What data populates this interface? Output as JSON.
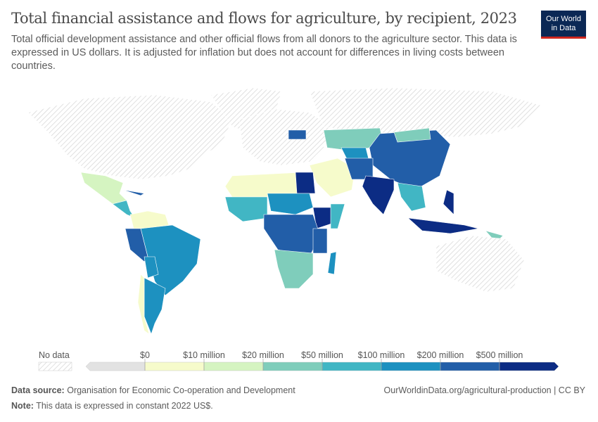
{
  "header": {
    "title": "Total financial assistance and flows for agriculture, by recipient, 2023",
    "subtitle": "Total official development assistance and other official flows from all donors to the agriculture sector. This data is expressed in US dollars. It is adjusted for inflation but does not account for differences in living costs between countries.",
    "logo_line1": "Our World",
    "logo_line2": "in Data"
  },
  "legend": {
    "no_data_label": "No data",
    "bins": [
      {
        "label": "$0",
        "color": "#f6fbcb"
      },
      {
        "label": "$10 million",
        "color": "#d5f4c1"
      },
      {
        "label": "$20 million",
        "color": "#7fcdbb"
      },
      {
        "label": "$50 million",
        "color": "#41b6c4"
      },
      {
        "label": "$100 million",
        "color": "#1d91c0"
      },
      {
        "label": "$200 million",
        "color": "#225ea8"
      },
      {
        "label": "$500 million",
        "color": "#0c2c84"
      }
    ],
    "below_zero_color": "#e2e2e2",
    "no_data_color": "#ffffff"
  },
  "footer": {
    "source_label": "Data source:",
    "source": "Organisation for Economic Co-operation and Development",
    "note_label": "Note:",
    "note": "This data is expressed in constant 2022 US$.",
    "url": "OurWorldinData.org/agricultural-production | CC BY"
  }
}
